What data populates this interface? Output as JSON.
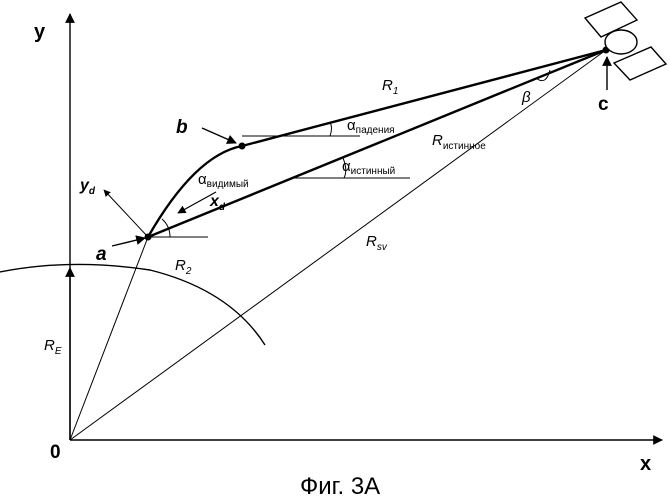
{
  "axes": {
    "y_label": "y",
    "x_label": "x",
    "origin_label": "0"
  },
  "points": {
    "a": "a",
    "b": "b",
    "c": "c"
  },
  "labels": {
    "R1": {
      "main": "R",
      "sub": "1"
    },
    "R2": {
      "main": "R",
      "sub": "2"
    },
    "RE": {
      "main": "R",
      "sub": "E"
    },
    "Rsv": {
      "main": "R",
      "sub": "sv"
    },
    "R_true": {
      "main": "R",
      "sub": "истинное"
    },
    "alpha_fall": {
      "main": "α",
      "sub": "падения"
    },
    "alpha_true": {
      "main": "α",
      "sub": "истинный"
    },
    "alpha_visible": {
      "main": "α",
      "sub": "видимый"
    },
    "beta": "β",
    "xd": {
      "main": "x",
      "sub": "d"
    },
    "yd": {
      "main": "y",
      "sub": "d"
    }
  },
  "caption": "Фиг. 3А"
}
